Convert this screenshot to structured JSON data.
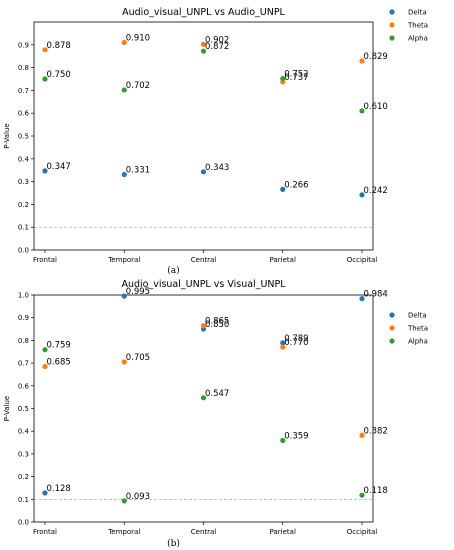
{
  "chart_data": [
    {
      "type": "scatter",
      "title": "Audio_visual_UNPL vs Audio_UNPL",
      "caption": "(a)",
      "xlabel": "",
      "ylabel": "P-Value",
      "categories": [
        "Frontal",
        "Temporal",
        "Central",
        "Parietal",
        "Occipital"
      ],
      "ylim": [
        0.0,
        1.0
      ],
      "yticks": [
        "0.0",
        "0.1",
        "0.2",
        "0.3",
        "0.4",
        "0.5",
        "0.6",
        "0.7",
        "0.8",
        "0.9"
      ],
      "reference_line": 0.1,
      "legend_position": "outside top-right",
      "series": [
        {
          "name": "Delta",
          "color": "#1f77b4",
          "values": [
            0.347,
            0.331,
            0.343,
            0.266,
            0.242
          ],
          "labels": [
            "0.347",
            "0.331",
            "0.343",
            "0.266",
            "0.242"
          ]
        },
        {
          "name": "Theta",
          "color": "#ff7f0e",
          "values": [
            0.878,
            0.91,
            0.902,
            0.737,
            0.829
          ],
          "labels": [
            "0.878",
            "0.910",
            "0.902",
            "0.737",
            "0.829"
          ]
        },
        {
          "name": "Alpha",
          "color": "#2ca02c",
          "values": [
            0.75,
            0.702,
            0.872,
            0.752,
            0.61
          ],
          "labels": [
            "0.750",
            "0.702",
            "0.872",
            "0.752",
            "0.610"
          ]
        }
      ]
    },
    {
      "type": "scatter",
      "title": "Audio_visual_UNPL vs Visual_UNPL",
      "caption": "(b)",
      "xlabel": "",
      "ylabel": "P-Value",
      "categories": [
        "Frontal",
        "Temporal",
        "Central",
        "Parietal",
        "Occipital"
      ],
      "ylim": [
        0.0,
        1.0
      ],
      "yticks": [
        "0.0",
        "0.1",
        "0.2",
        "0.3",
        "0.4",
        "0.5",
        "0.6",
        "0.7",
        "0.8",
        "0.9",
        "1.0"
      ],
      "reference_line": 0.1,
      "legend_position": "outside top-right",
      "highlight_color": "#d62728",
      "series": [
        {
          "name": "Delta",
          "color": "#1f77b4",
          "values": [
            0.128,
            0.995,
            0.85,
            0.789,
            0.984
          ],
          "labels": [
            "0.128",
            "0.995",
            "0.850",
            "0.789",
            "0.984"
          ]
        },
        {
          "name": "Theta",
          "color": "#ff7f0e",
          "values": [
            0.685,
            0.705,
            0.865,
            0.77,
            0.382
          ],
          "labels": [
            "0.685",
            "0.705",
            "0.865",
            "0.770",
            "0.382"
          ]
        },
        {
          "name": "Alpha",
          "color": "#2ca02c",
          "values": [
            0.759,
            0.093,
            0.547,
            0.359,
            0.118
          ],
          "labels": [
            "0.759",
            "0.093",
            "0.547",
            "0.359",
            "0.118"
          ]
        }
      ]
    }
  ]
}
